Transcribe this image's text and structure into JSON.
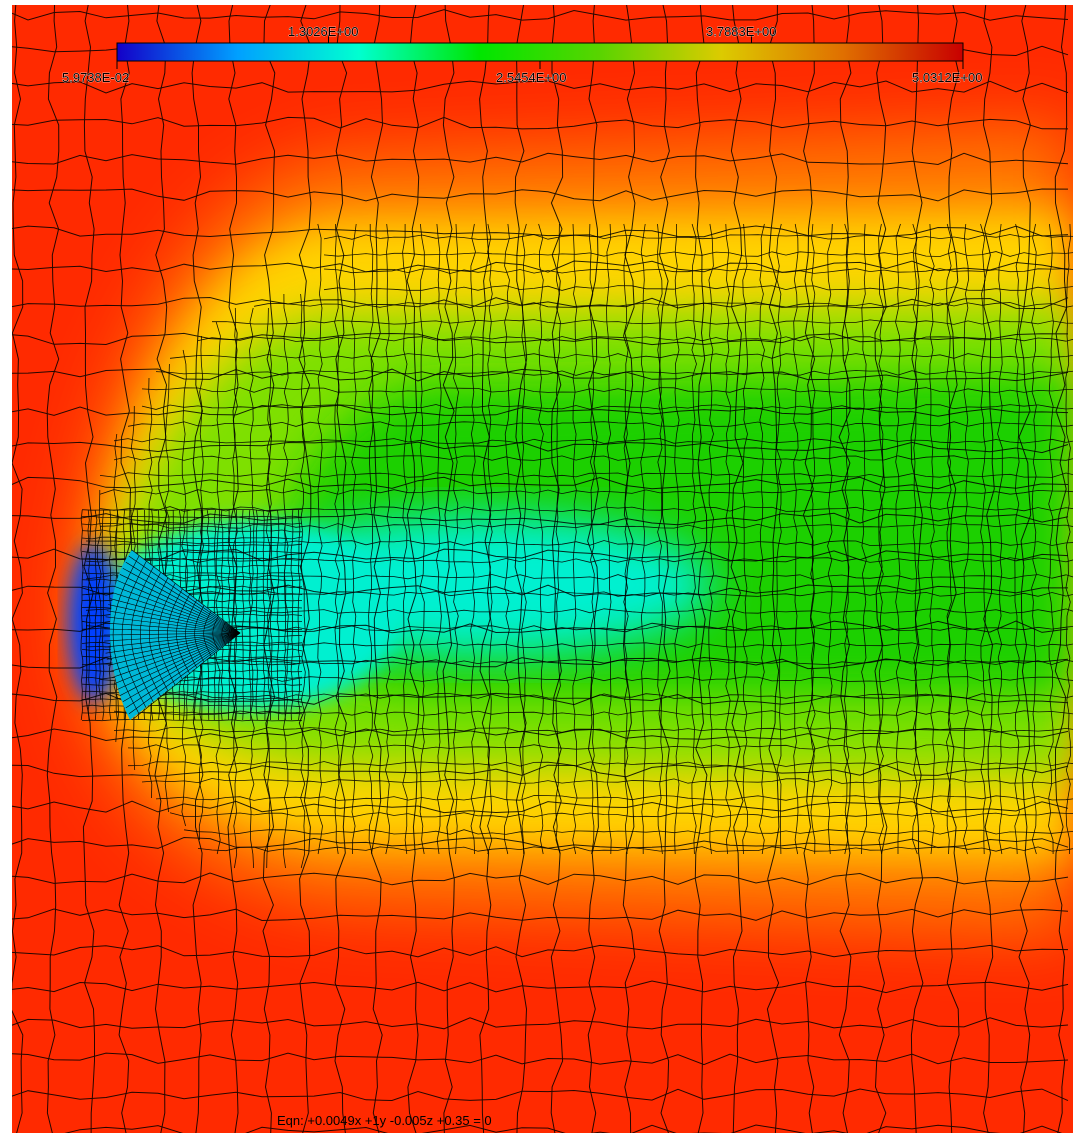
{
  "legend": {
    "colors": [
      "#1400c8",
      "#00a0ff",
      "#00ffd0",
      "#00e600",
      "#5ad400",
      "#dccb00",
      "#e07000",
      "#c80000"
    ],
    "tick_labels_top": [
      "1.3026E+00",
      "3.7883E+00"
    ],
    "tick_labels_bottom": [
      "5.9738E-02",
      "2.5454E+00",
      "5.0312E+00"
    ]
  },
  "field": {
    "background": "#ff2a00",
    "outer_band": "#ff7a00",
    "mid_band": "#ffd400",
    "inner_band": "#7ee000",
    "core": "#1ed000",
    "wake": "#00f0d0",
    "stagnation": "#0040ff",
    "mesh_line": "#000000"
  },
  "equation": "Eqn: +0.0049x +1y -0.005z +0.35 = 0"
}
